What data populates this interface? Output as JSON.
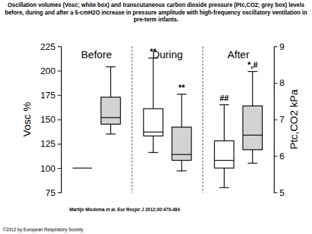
{
  "chart_data": {
    "type": "box",
    "title": "Oscillation volumes (Vosc; white box) and transcutaneous carbon dioxide pressure (Ptc,CO2; grey box) levels before, during and after a 5-cmH2O increase in pressure amplitude with high-frequency oscillatory ventilation in pre-term infants.",
    "categories": [
      "Before",
      "During",
      "After"
    ],
    "ylabel": "Vosc %",
    "y2label": "Ptc,CO2 kPa",
    "ylim": [
      75,
      225
    ],
    "yticks": [
      75,
      100,
      125,
      150,
      175,
      200,
      225
    ],
    "y2lim": [
      5,
      9
    ],
    "y2ticks": [
      5,
      6,
      7,
      8,
      9
    ],
    "series": [
      {
        "color": "#ffffff",
        "axis": "y",
        "values": [
          {
            "low": 100,
            "q1": 100,
            "median": 100,
            "q3": 100,
            "high": 100
          },
          {
            "low": 116,
            "q1": 133,
            "median": 137,
            "q3": 161,
            "high": 213
          },
          {
            "low": 80,
            "q1": 100,
            "median": 108,
            "q3": 128,
            "high": 165
          }
        ],
        "annotations": [
          null,
          "**",
          "##"
        ]
      },
      {
        "color": "#d3d3d3",
        "axis": "y2",
        "values": [
          {
            "low": 6.6,
            "q1": 6.87,
            "median": 7.05,
            "q3": 7.61,
            "high": 8.44
          },
          {
            "low": 5.59,
            "q1": 5.88,
            "median": 6.04,
            "q3": 6.79,
            "high": 7.69
          },
          {
            "low": 5.8,
            "q1": 6.17,
            "median": 6.57,
            "q3": 7.37,
            "high": 8.31
          }
        ],
        "annotations": [
          null,
          "**",
          "*,#"
        ]
      }
    ],
    "source": "Martijn Miedema et al. Eur Respir J 2012;40:479-484",
    "copyright": "©2012 by European Respiratory Society"
  }
}
